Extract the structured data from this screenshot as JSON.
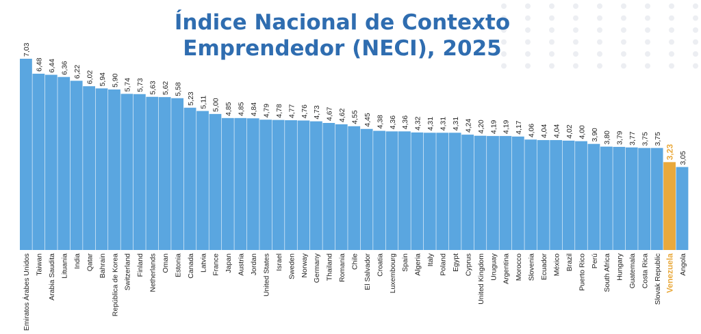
{
  "chart_data": {
    "type": "bar",
    "title_lines": [
      "Índice Nacional de Contexto",
      "Emprendedor (NECI), 2025"
    ],
    "categories": [
      "Emiratos Árabes Unidos",
      "Taiwan",
      "Arabia Saudita",
      "Lituania",
      "India",
      "Qatar",
      "Bahrain",
      "República de Korea",
      "Switzerland",
      "Finland",
      "Netherlands",
      "Oman",
      "Estonia",
      "Canada",
      "Latvia",
      "France",
      "Japan",
      "Austria",
      "Jordan",
      "United States",
      "Israel",
      "Sweden",
      "Norway",
      "Germany",
      "Thailand",
      "Romania",
      "Chile",
      "El Salvador",
      "Croatia",
      "Luxembourg",
      "Spain",
      "Algeria",
      "Italy",
      "Poland",
      "Egypt",
      "Cyprus",
      "United Kingdom",
      "Uruguay",
      "Argentina",
      "Morocco",
      "Slovenia",
      "Ecuador",
      "México",
      "Brazil",
      "Puerto Rico",
      "Perú",
      "South Africa",
      "Hungary",
      "Guatemala",
      "Costa Rica",
      "Slovak Republic",
      "Venezuela",
      "Angola"
    ],
    "values": [
      7.03,
      6.48,
      6.44,
      6.36,
      6.22,
      6.02,
      5.94,
      5.9,
      5.74,
      5.73,
      5.63,
      5.62,
      5.58,
      5.23,
      5.11,
      5.0,
      4.85,
      4.85,
      4.84,
      4.79,
      4.78,
      4.77,
      4.76,
      4.73,
      4.67,
      4.62,
      4.55,
      4.45,
      4.38,
      4.36,
      4.36,
      4.32,
      4.31,
      4.31,
      4.31,
      4.24,
      4.2,
      4.19,
      4.19,
      4.17,
      4.06,
      4.04,
      4.04,
      4.02,
      4.0,
      3.9,
      3.8,
      3.79,
      3.77,
      3.75,
      3.75,
      3.23,
      3.05
    ],
    "value_labels": [
      "7,03",
      "6,48",
      "6,44",
      "6,36",
      "6,22",
      "6,02",
      "5,94",
      "5,90",
      "5,74",
      "5,73",
      "5,63",
      "5,62",
      "5,58",
      "5,23",
      "5,11",
      "5,00",
      "4,85",
      "4,85",
      "4,84",
      "4,79",
      "4,78",
      "4,77",
      "4,76",
      "4,73",
      "4,67",
      "4,62",
      "4,55",
      "4,45",
      "4,38",
      "4,36",
      "4,36",
      "4,32",
      "4,31",
      "4,31",
      "4,31",
      "4,24",
      "4,20",
      "4,19",
      "4,19",
      "4,17",
      "4,06",
      "4,04",
      "4,04",
      "4,02",
      "4,00",
      "3,90",
      "3,80",
      "3,79",
      "3,77",
      "3,75",
      "3,75",
      "3,23",
      "3,05"
    ],
    "highlight_category": "Venezuela",
    "ylim": [
      0,
      7.03
    ],
    "grid": false,
    "colors": {
      "bar": "#5aa6e0",
      "highlight": "#e9a93c",
      "title": "#2f6db0",
      "dots": "#eceef2"
    }
  }
}
